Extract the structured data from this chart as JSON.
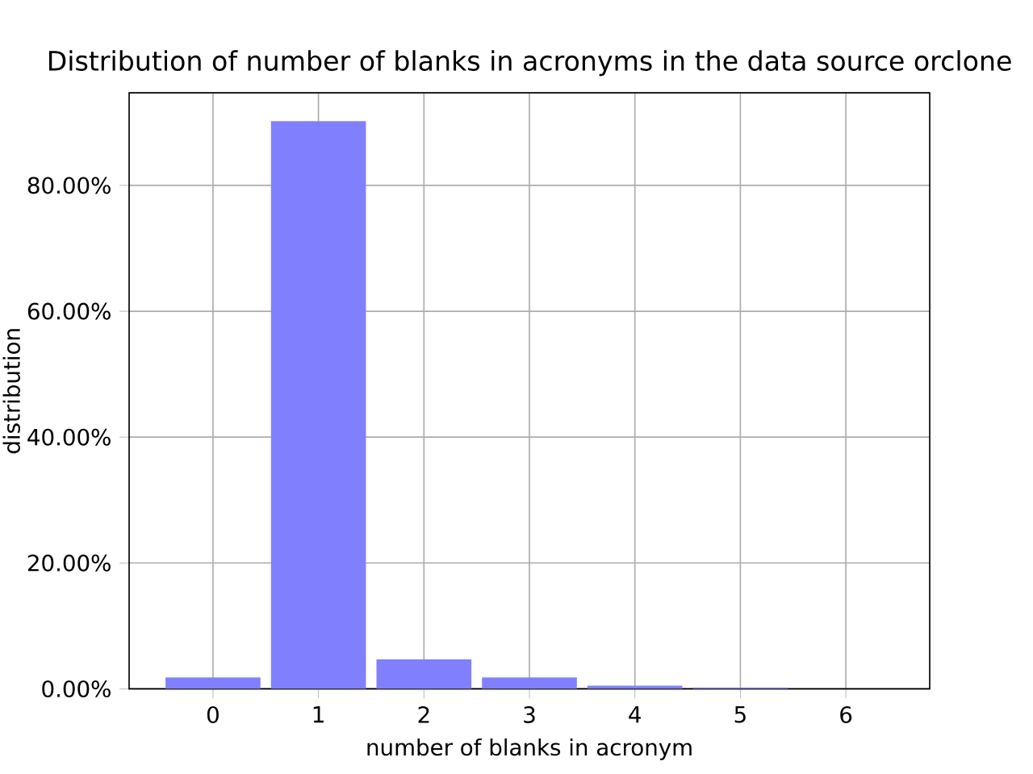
{
  "chart_data": {
    "type": "bar",
    "title": "Distribution of number of blanks in acronyms in the data source orclone",
    "xlabel": "number of blanks in acronym",
    "ylabel": "distribution",
    "x": [
      0,
      1,
      2,
      3,
      4,
      5,
      6
    ],
    "values": [
      1.8,
      90.2,
      4.7,
      1.8,
      0.5,
      0.2,
      0
    ],
    "color": "#8080ff",
    "xlim": [
      -0.795,
      6.795
    ],
    "xticks": [
      0,
      1,
      2,
      3,
      4,
      5,
      6
    ],
    "ylim": [
      0,
      94.7
    ],
    "yticks": [
      {
        "value": 0,
        "label": "0.00%"
      },
      {
        "value": 20,
        "label": "20.00%"
      },
      {
        "value": 40,
        "label": "40.00%"
      },
      {
        "value": 60,
        "label": "60.00%"
      },
      {
        "value": 80,
        "label": "80.00%"
      }
    ],
    "grid": true
  }
}
